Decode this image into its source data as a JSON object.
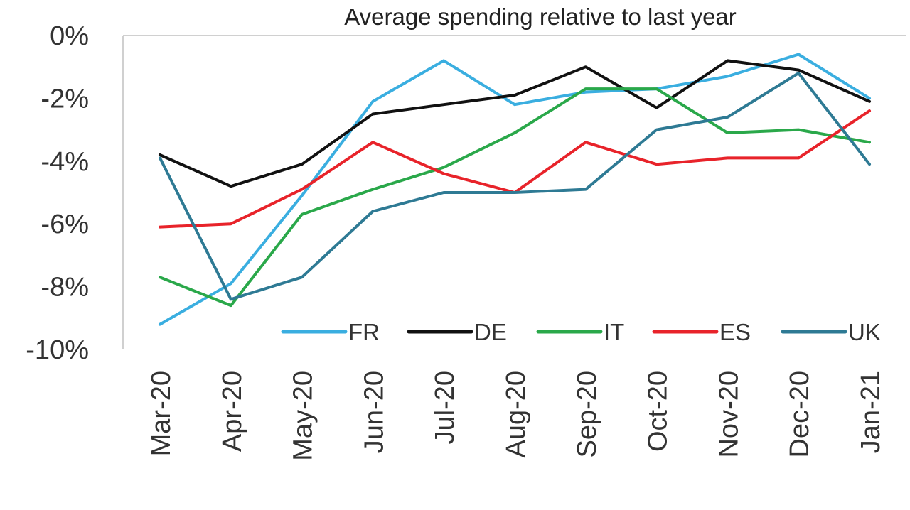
{
  "chart_data": {
    "type": "line",
    "title": "Average spending relative to last year",
    "xlabel": "",
    "ylabel": "",
    "categories": [
      "Mar-20",
      "Apr-20",
      "May-20",
      "Jun-20",
      "Jul-20",
      "Aug-20",
      "Sep-20",
      "Oct-20",
      "Nov-20",
      "Dec-20",
      "Jan-21"
    ],
    "y_ticks": [
      "0%",
      "-2%",
      "-4%",
      "-6%",
      "-8%",
      "-10%"
    ],
    "y_tick_values": [
      0,
      -2,
      -4,
      -6,
      -8,
      -10
    ],
    "ylim": [
      -10,
      0
    ],
    "grid": false,
    "legend_position": "bottom-right",
    "series": [
      {
        "name": "FR",
        "color": "#3aaee0",
        "values": [
          -9.2,
          -7.9,
          -5.1,
          -2.1,
          -0.8,
          -2.2,
          -1.8,
          -1.7,
          -1.3,
          -0.6,
          -2.0
        ]
      },
      {
        "name": "DE",
        "color": "#111111",
        "values": [
          -3.8,
          -4.8,
          -4.1,
          -2.5,
          -2.2,
          -1.9,
          -1.0,
          -2.3,
          -0.8,
          -1.1,
          -2.1
        ]
      },
      {
        "name": "IT",
        "color": "#2aa84a",
        "values": [
          -7.7,
          -8.6,
          -5.7,
          -4.9,
          -4.2,
          -3.1,
          -1.7,
          -1.7,
          -3.1,
          -3.0,
          -3.4
        ]
      },
      {
        "name": "ES",
        "color": "#e8232a",
        "values": [
          -6.1,
          -6.0,
          -4.9,
          -3.4,
          -4.4,
          -5.0,
          -3.4,
          -4.1,
          -3.9,
          -3.9,
          -2.4
        ]
      },
      {
        "name": "UK",
        "color": "#2e7a94",
        "values": [
          -3.9,
          -8.4,
          -7.7,
          -5.6,
          -5.0,
          -5.0,
          -4.9,
          -3.0,
          -2.6,
          -1.2,
          -4.1
        ]
      }
    ]
  }
}
